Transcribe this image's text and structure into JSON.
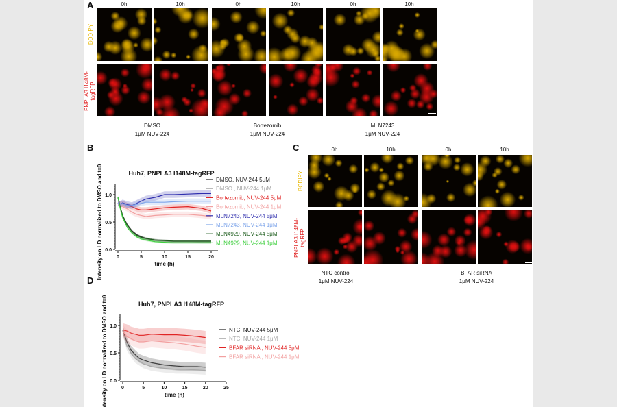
{
  "panels": {
    "a": "A",
    "b": "B",
    "c": "C",
    "d": "D"
  },
  "panel_a": {
    "time_labels": [
      "0h",
      "10h",
      "0h",
      "10h",
      "0h",
      "10h"
    ],
    "row_labels": {
      "bodipy": "BODIPY",
      "rfp": "PNPLA3 I148M-tagRFP"
    },
    "captions": [
      {
        "line1": "DMSO",
        "line2": "1μM NUV-224"
      },
      {
        "line1": "Bortezomib",
        "line2": "1μM NUV-224"
      },
      {
        "line1": "MLN7243",
        "line2": "1μM NUV-224"
      }
    ]
  },
  "panel_c": {
    "time_labels": [
      "0h",
      "10h",
      "0h",
      "10h"
    ],
    "row_labels": {
      "bodipy": "BODIPY",
      "rfp": "PNPLA3 I148M-tagRFP"
    },
    "captions": [
      {
        "line1": "NTC control",
        "line2": "1μM NUV-224"
      },
      {
        "line1": "BFAR siRNA",
        "line2": "1μM NUV-224"
      }
    ]
  },
  "chart_data": [
    {
      "type": "line",
      "title": "Huh7, PNPLA3 I148M-tagRFP",
      "xlabel": "time (h)",
      "ylabel": "Intensity on LD normalized to DMSO and t=0",
      "xlim": [
        0,
        20
      ],
      "ylim": [
        0,
        1.2
      ],
      "xticks": [
        "0",
        "5",
        "10",
        "15",
        "20"
      ],
      "yticks": [
        "0.0",
        "0.5",
        "1.0"
      ],
      "legend": "right",
      "x": [
        0,
        0.5,
        1,
        2,
        3,
        4,
        5,
        6,
        8,
        10,
        12,
        15,
        18,
        20
      ],
      "series": [
        {
          "name": "DMSO, NUV-244 5μM",
          "color": "#222222",
          "values": [
            0.95,
            0.78,
            0.62,
            0.45,
            0.34,
            0.27,
            0.23,
            0.2,
            0.17,
            0.16,
            0.15,
            0.15,
            0.15,
            0.15
          ],
          "err": 0.02
        },
        {
          "name": "DMSO , NUV-244 1μM",
          "color": "#a8a8a8",
          "values": [
            0.95,
            0.76,
            0.6,
            0.43,
            0.32,
            0.25,
            0.21,
            0.18,
            0.16,
            0.15,
            0.14,
            0.14,
            0.13,
            0.13
          ],
          "err": 0.02
        },
        {
          "name": "Bortezomib, NUV-244 5μM",
          "color": "#e02424",
          "values": [
            0.85,
            0.82,
            0.84,
            0.8,
            0.78,
            0.74,
            0.72,
            0.72,
            0.74,
            0.76,
            0.77,
            0.78,
            0.75,
            0.7
          ],
          "err": 0.05
        },
        {
          "name": "Bortezomib, NUV-244 1μM",
          "color": "#f2a0a0",
          "values": [
            0.85,
            0.8,
            0.78,
            0.74,
            0.68,
            0.64,
            0.62,
            0.6,
            0.62,
            0.63,
            0.64,
            0.64,
            0.62,
            0.6
          ],
          "err": 0.05
        },
        {
          "name": "MLN7243, NUV-244 5μM",
          "color": "#2f2fae",
          "values": [
            0.85,
            0.82,
            0.85,
            0.82,
            0.8,
            0.84,
            0.88,
            0.92,
            0.95,
            1.0,
            1.0,
            1.01,
            1.02,
            1.02
          ],
          "err": 0.06
        },
        {
          "name": "MLN7243, NUV-244 1μM",
          "color": "#7fa6ea",
          "values": [
            0.85,
            0.82,
            0.84,
            0.8,
            0.8,
            0.82,
            0.84,
            0.86,
            0.86,
            0.86,
            0.87,
            0.88,
            0.88,
            0.88
          ],
          "err": 0.05
        },
        {
          "name": "MLN4929, NUV-244 5μM",
          "color": "#1f5e1f",
          "values": [
            0.95,
            0.77,
            0.62,
            0.44,
            0.33,
            0.26,
            0.22,
            0.2,
            0.17,
            0.16,
            0.15,
            0.15,
            0.15,
            0.15
          ],
          "err": 0.02
        },
        {
          "name": "MLN4929, NUV-244 1μM",
          "color": "#3fcf3f",
          "values": [
            0.95,
            0.74,
            0.58,
            0.4,
            0.3,
            0.23,
            0.19,
            0.17,
            0.14,
            0.13,
            0.12,
            0.12,
            0.12,
            0.12
          ],
          "err": 0.02
        }
      ]
    },
    {
      "type": "line",
      "title": "Huh7, PNPLA3 I148M-tagRFP",
      "xlabel": "time (h)",
      "ylabel": "Intensity on LD normalized to DMSO and t=0",
      "xlim": [
        0,
        25
      ],
      "ylim": [
        0,
        1.2
      ],
      "xticks": [
        "0",
        "5",
        "10",
        "15",
        "20",
        "25"
      ],
      "yticks": [
        "0.0",
        "0.5",
        "1.0"
      ],
      "legend": "right",
      "x": [
        0,
        1,
        2,
        3,
        4,
        5,
        7,
        10,
        13,
        15,
        18,
        20
      ],
      "series": [
        {
          "name": "NTC, NUV-244 5μM",
          "color": "#222222",
          "values": [
            0.92,
            0.7,
            0.55,
            0.47,
            0.4,
            0.37,
            0.32,
            0.28,
            0.26,
            0.25,
            0.25,
            0.24
          ],
          "err": 0.08
        },
        {
          "name": "NTC, NUV-244 1μM",
          "color": "#a8a8a8",
          "values": [
            0.9,
            0.62,
            0.5,
            0.4,
            0.35,
            0.3,
            0.25,
            0.22,
            0.2,
            0.2,
            0.19,
            0.18
          ],
          "err": 0.08
        },
        {
          "name": "BFAR siRNA , NUV-244 5μM",
          "color": "#e02424",
          "values": [
            0.92,
            0.9,
            0.86,
            0.84,
            0.82,
            0.82,
            0.84,
            0.83,
            0.83,
            0.82,
            0.8,
            0.78
          ],
          "err": 0.12
        },
        {
          "name": "BFAR siRNA , NUV-244 1μM",
          "color": "#f2a0a0",
          "values": [
            0.9,
            0.8,
            0.76,
            0.72,
            0.7,
            0.7,
            0.72,
            0.7,
            0.68,
            0.66,
            0.62,
            0.6
          ],
          "err": 0.12
        }
      ]
    }
  ]
}
